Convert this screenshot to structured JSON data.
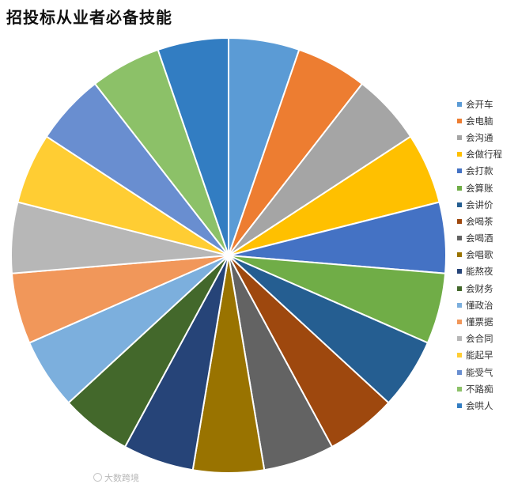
{
  "chart_data": {
    "type": "pie",
    "title": "招投标从业者必备技能",
    "categories": [
      "会开车",
      "会电脑",
      "会沟通",
      "会做行程",
      "会打款",
      "会算账",
      "会讲价",
      "会喝茶",
      "会喝酒",
      "会唱歌",
      "能熬夜",
      "会财务",
      "懂政治",
      "懂票据",
      "会合同",
      "能起早",
      "能受气",
      "不路痴",
      "会哄人"
    ],
    "values": [
      1,
      1,
      1,
      1,
      1,
      1,
      1,
      1,
      1,
      1,
      1,
      1,
      1,
      1,
      1,
      1,
      1,
      1,
      1
    ],
    "colors": [
      "#5B9BD5",
      "#ED7D31",
      "#A5A5A5",
      "#FFC000",
      "#4472C4",
      "#70AD47",
      "#255E91",
      "#9E480E",
      "#636363",
      "#997300",
      "#264478",
      "#43682B",
      "#7CAFDD",
      "#F1975A",
      "#B7B7B7",
      "#FFCD33",
      "#698ED0",
      "#8CC168",
      "#327DC2"
    ],
    "legend_position": "right"
  },
  "watermark": {
    "text": "大数跨境"
  }
}
